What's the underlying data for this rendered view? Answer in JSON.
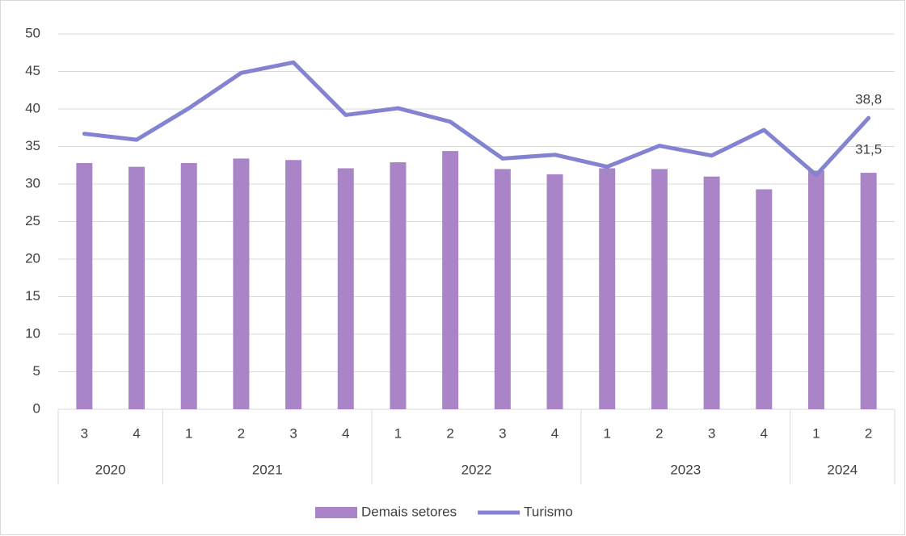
{
  "chart_data": {
    "type": "bar-line",
    "groups": [
      {
        "label": "2020",
        "categories": [
          "3",
          "4"
        ]
      },
      {
        "label": "2021",
        "categories": [
          "1",
          "2",
          "3",
          "4"
        ]
      },
      {
        "label": "2022",
        "categories": [
          "1",
          "2",
          "3",
          "4"
        ]
      },
      {
        "label": "2023",
        "categories": [
          "1",
          "2",
          "3",
          "4"
        ]
      },
      {
        "label": "2024",
        "categories": [
          "1",
          "2"
        ]
      }
    ],
    "series": [
      {
        "name": "Demais setores",
        "type": "bar",
        "color": "#a985c8",
        "values": [
          32.8,
          32.3,
          32.8,
          33.4,
          33.2,
          32.1,
          32.9,
          34.4,
          32.0,
          31.3,
          32.1,
          32.0,
          31.0,
          29.3,
          31.8,
          31.5
        ],
        "value_labels": [
          null,
          null,
          null,
          null,
          null,
          null,
          null,
          null,
          null,
          null,
          null,
          null,
          null,
          null,
          null,
          "31,5"
        ]
      },
      {
        "name": "Turismo",
        "type": "line",
        "color": "#8383d2",
        "values": [
          36.7,
          35.9,
          40.1,
          44.8,
          46.2,
          39.2,
          40.1,
          38.3,
          33.4,
          33.9,
          32.3,
          35.1,
          33.8,
          37.2,
          31.2,
          38.8
        ],
        "value_labels": [
          null,
          null,
          null,
          null,
          null,
          null,
          null,
          null,
          null,
          null,
          null,
          null,
          null,
          null,
          null,
          "38,8"
        ]
      }
    ],
    "ylim": [
      0,
      50
    ],
    "yticks": [
      0,
      5,
      10,
      15,
      20,
      25,
      30,
      35,
      40,
      45,
      50
    ],
    "grid": true,
    "legend": "bottom"
  }
}
